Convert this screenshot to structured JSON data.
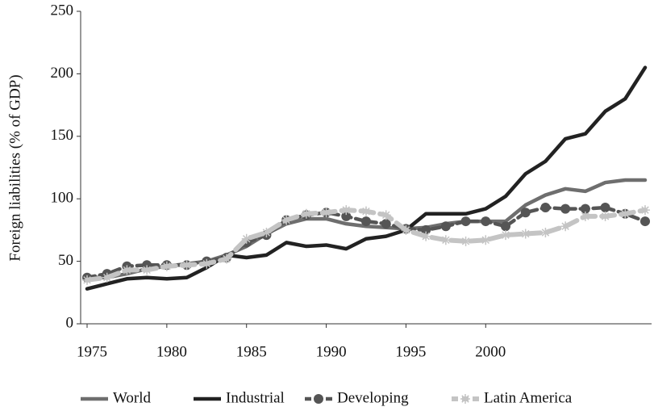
{
  "chart_data": {
    "type": "line",
    "y_label": "Foreign liabilities (% of GDP)",
    "categories": [
      "1975",
      null,
      null,
      null,
      "1980",
      null,
      null,
      null,
      "1985",
      null,
      null,
      null,
      "1990",
      null,
      null,
      null,
      "1995",
      null,
      null,
      null,
      "2000",
      null,
      null,
      null,
      null,
      null,
      null,
      null,
      null
    ],
    "series": [
      {
        "name": "World",
        "color": "#6e6e6e",
        "values": [
          37,
          37,
          40,
          44,
          46,
          48,
          50,
          55,
          62,
          72,
          80,
          84,
          84,
          80,
          78,
          77,
          76,
          77,
          80,
          82,
          82,
          82,
          95,
          103,
          108,
          106,
          113,
          115,
          115
        ]
      },
      {
        "name": "Industrial",
        "color": "#222222",
        "values": [
          28,
          32,
          36,
          37,
          36,
          37,
          45,
          55,
          53,
          55,
          65,
          62,
          63,
          60,
          68,
          70,
          75,
          88,
          88,
          88,
          92,
          102,
          120,
          130,
          148,
          152,
          170,
          180,
          205
        ]
      },
      {
        "name": "Developing",
        "color": "#555555",
        "values": [
          37,
          40,
          46,
          47,
          47,
          47,
          50,
          53,
          65,
          71,
          83,
          87,
          89,
          86,
          82,
          80,
          76,
          75,
          78,
          82,
          82,
          78,
          89,
          93,
          92,
          92,
          93,
          88,
          82
        ]
      },
      {
        "name": "Latin America",
        "color": "#c4c4c4",
        "values": [
          35,
          37,
          43,
          43,
          46,
          47,
          48,
          52,
          68,
          73,
          83,
          88,
          89,
          91,
          90,
          87,
          75,
          70,
          67,
          66,
          67,
          71,
          72,
          73,
          78,
          86,
          86,
          88,
          91
        ]
      }
    ],
    "ylim": [
      0,
      250
    ],
    "yticks": [
      0,
      50,
      100,
      150,
      200,
      250
    ]
  }
}
